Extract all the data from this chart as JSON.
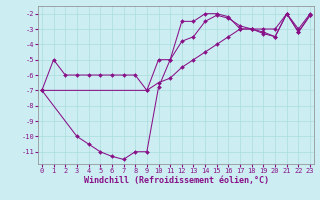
{
  "line1_x": [
    0,
    1,
    2,
    3,
    4,
    5,
    6,
    7,
    8,
    9,
    10,
    11,
    12,
    13,
    14,
    15,
    16,
    17,
    18,
    19,
    20,
    21,
    22,
    23
  ],
  "line1_y": [
    -7,
    -5,
    -6,
    -6,
    -6,
    -6,
    -6,
    -6,
    -6,
    -7,
    -5,
    -5,
    -2.5,
    -2.5,
    -2,
    -2,
    -2.2,
    -3,
    -3,
    -3,
    -3,
    -2,
    -3,
    -2
  ],
  "line2_x": [
    0,
    3,
    4,
    5,
    6,
    7,
    8,
    9,
    10,
    11,
    12,
    13,
    14,
    15,
    16,
    17,
    18,
    19,
    20,
    21,
    22,
    23
  ],
  "line2_y": [
    -7,
    -10,
    -10.5,
    -11,
    -11.3,
    -11.5,
    -11,
    -11,
    -6.8,
    -5.0,
    -3.8,
    -3.5,
    -2.5,
    -2.1,
    -2.3,
    -2.8,
    -3.0,
    -3.3,
    -3.5,
    -2.0,
    -3.2,
    -2.1
  ],
  "line3_x": [
    0,
    9,
    10,
    11,
    12,
    13,
    14,
    15,
    16,
    17,
    18,
    19,
    20,
    21,
    22,
    23
  ],
  "line3_y": [
    -7,
    -7,
    -6.5,
    -6.2,
    -5.5,
    -5.0,
    -4.5,
    -4.0,
    -3.5,
    -3.0,
    -3.0,
    -3.2,
    -3.5,
    -2.0,
    -3.2,
    -2.1
  ],
  "line_color": "#881188",
  "bg_color": "#cceef2",
  "grid_color": "#aadddd",
  "xlabel": "Windchill (Refroidissement éolien,°C)",
  "xlim": [
    -0.3,
    23.3
  ],
  "ylim": [
    -11.8,
    -1.5
  ],
  "yticks": [
    -2,
    -3,
    -4,
    -5,
    -6,
    -7,
    -8,
    -9,
    -10,
    -11
  ],
  "xticks": [
    0,
    1,
    2,
    3,
    4,
    5,
    6,
    7,
    8,
    9,
    10,
    11,
    12,
    13,
    14,
    15,
    16,
    17,
    18,
    19,
    20,
    21,
    22,
    23
  ],
  "tick_fontsize": 5.0,
  "xlabel_fontsize": 6.0
}
